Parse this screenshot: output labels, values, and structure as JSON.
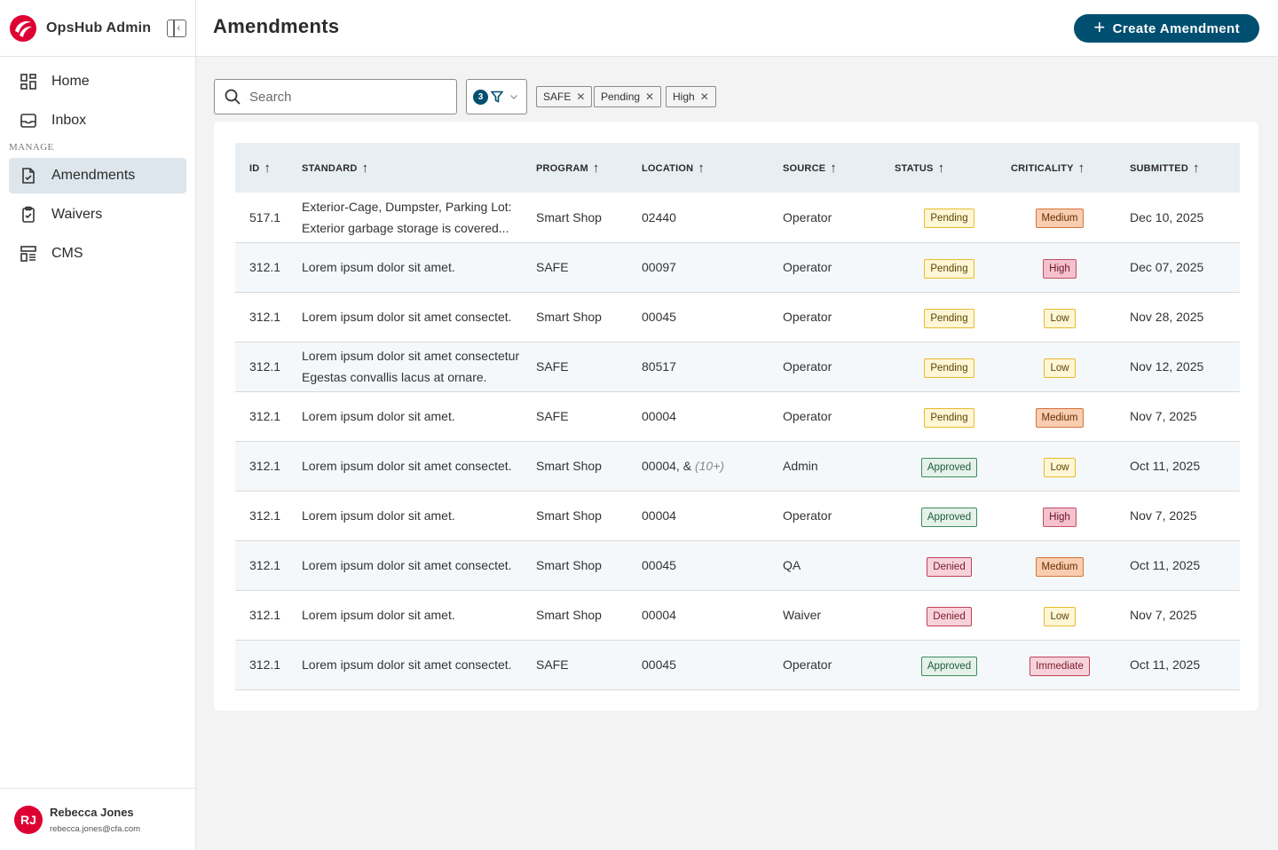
{
  "app": {
    "name": "OpsHub Admin"
  },
  "sidebar": {
    "items": [
      {
        "label": "Home",
        "icon": "grid-icon"
      },
      {
        "label": "Inbox",
        "icon": "inbox-icon"
      }
    ],
    "section_label": "MANAGE",
    "manage_items": [
      {
        "label": "Amendments",
        "icon": "document-check-icon",
        "active": true
      },
      {
        "label": "Waivers",
        "icon": "clipboard-check-icon"
      },
      {
        "label": "CMS",
        "icon": "layout-list-icon"
      }
    ]
  },
  "user": {
    "initials": "RJ",
    "name": "Rebecca Jones",
    "email": "rebecca.jones@cfa.com"
  },
  "header": {
    "title": "Amendments",
    "create_label": "Create Amendment"
  },
  "filters": {
    "search_placeholder": "Search",
    "active_count": "3",
    "chips": [
      "SAFE",
      "Pending",
      "High"
    ]
  },
  "table": {
    "columns": [
      "ID",
      "STANDARD",
      "PROGRAM",
      "LOCATION",
      "SOURCE",
      "STATUS",
      "CRITICALITY",
      "SUBMITTED"
    ],
    "rows": [
      {
        "id": "517.1",
        "standard": "Exterior-Cage, Dumpster, Parking Lot: Exterior garbage storage is covered...",
        "program": "Smart Shop",
        "location": "02440",
        "location_more": "",
        "source": "Operator",
        "status": "Pending",
        "criticality": "Medium",
        "submitted": "Dec 10, 2025"
      },
      {
        "id": "312.1",
        "standard": "Lorem ipsum dolor sit amet.",
        "program": "SAFE",
        "location": "00097",
        "location_more": "",
        "source": "Operator",
        "status": "Pending",
        "criticality": "High",
        "submitted": "Dec 07, 2025"
      },
      {
        "id": "312.1",
        "standard": "Lorem ipsum dolor sit amet consectet.",
        "program": "Smart Shop",
        "location": "00045",
        "location_more": "",
        "source": "Operator",
        "status": "Pending",
        "criticality": "Low",
        "submitted": "Nov 28, 2025"
      },
      {
        "id": "312.1",
        "standard": "Lorem ipsum dolor sit amet consectetur Egestas convallis lacus at ornare.",
        "program": "SAFE",
        "location": "80517",
        "location_more": "",
        "source": "Operator",
        "status": "Pending",
        "criticality": "Low",
        "submitted": "Nov 12,  2025"
      },
      {
        "id": "312.1",
        "standard": "Lorem ipsum dolor sit amet.",
        "program": "SAFE",
        "location": "00004",
        "location_more": "",
        "source": "Operator",
        "status": "Pending",
        "criticality": "Medium",
        "submitted": "Nov 7, 2025"
      },
      {
        "id": "312.1",
        "standard": "Lorem ipsum dolor sit amet consectet.",
        "program": "Smart Shop",
        "location": "00004, &",
        "location_more": "(10+)",
        "source": "Admin",
        "status": "Approved",
        "criticality": "Low",
        "submitted": "Oct 11, 2025"
      },
      {
        "id": "312.1",
        "standard": "Lorem ipsum dolor sit amet.",
        "program": "Smart Shop",
        "location": "00004",
        "location_more": "",
        "source": "Operator",
        "status": "Approved",
        "criticality": "High",
        "submitted": "Nov 7, 2025"
      },
      {
        "id": "312.1",
        "standard": "Lorem ipsum dolor sit amet consectet.",
        "program": "Smart Shop",
        "location": "00045",
        "location_more": "",
        "source": "QA",
        "status": "Denied",
        "criticality": "Medium",
        "submitted": "Oct 11, 2025"
      },
      {
        "id": "312.1",
        "standard": "Lorem ipsum dolor sit amet.",
        "program": "Smart Shop",
        "location": "00004",
        "location_more": "",
        "source": "Waiver",
        "status": "Denied",
        "criticality": "Low",
        "submitted": "Nov 7, 2025"
      },
      {
        "id": "312.1",
        "standard": "Lorem ipsum dolor sit amet consectet.",
        "program": "SAFE",
        "location": "00045",
        "location_more": "",
        "source": "Operator",
        "status": "Approved",
        "criticality": "Immediate",
        "submitted": "Oct 11, 2025"
      }
    ]
  },
  "colors": {
    "brand_primary": "#004f71",
    "brand_red": "#dd0033",
    "active_nav": "#dce6ec",
    "header_row": "#e8eff2"
  }
}
